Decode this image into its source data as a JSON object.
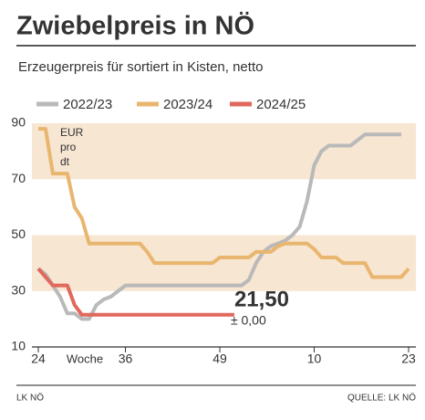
{
  "chart_data": {
    "type": "line",
    "title": "Zwiebelpreis in NÖ",
    "subtitle": "Erzeugerpreis für sortiert in Kisten, netto",
    "y_unit": "EUR pro dt",
    "x_label": "Woche",
    "source_left": "LK NÖ",
    "source_right": "QUELLE: LK NÖ",
    "x": [
      0,
      1,
      2,
      3,
      4,
      5,
      6,
      7,
      8,
      9,
      10,
      11,
      12,
      13,
      14,
      15,
      16,
      17,
      18,
      19,
      20,
      21,
      22,
      23,
      24,
      25,
      26,
      27,
      28,
      29,
      30,
      31,
      32,
      33,
      34,
      35,
      36,
      37,
      38,
      39,
      40,
      41,
      42,
      43,
      44,
      45,
      46,
      47,
      48,
      49,
      50,
      51
    ],
    "xlim": [
      0,
      51
    ],
    "xticks": [
      {
        "value": 0,
        "label": "24"
      },
      {
        "value": 12,
        "label": "36"
      },
      {
        "value": 25,
        "label": "49"
      },
      {
        "value": 38,
        "label": "10"
      },
      {
        "value": 51,
        "label": "23"
      }
    ],
    "ylim": [
      10,
      90
    ],
    "yticks": [
      10,
      30,
      50,
      70,
      90
    ],
    "bands": [
      [
        70,
        90
      ],
      [
        30,
        50
      ]
    ],
    "band_color": "#f7e6d2",
    "series": [
      {
        "name": "2022/23",
        "color": "#b9b9b9",
        "values": [
          38,
          36,
          32,
          28,
          22,
          22,
          20,
          20,
          25,
          27,
          28,
          30,
          32,
          32,
          32,
          32,
          32,
          32,
          32,
          32,
          32,
          32,
          32,
          32,
          32,
          32,
          32,
          32,
          32,
          34,
          40,
          44,
          46,
          47,
          48,
          50,
          53,
          62,
          75,
          80,
          82,
          82,
          82,
          82,
          84,
          86,
          86,
          86,
          86,
          86,
          86,
          null
        ]
      },
      {
        "name": "2023/24",
        "color": "#e9b66f",
        "values": [
          88,
          88,
          72,
          72,
          72,
          60,
          56,
          47,
          47,
          47,
          47,
          47,
          47,
          47,
          47,
          44,
          40,
          40,
          40,
          40,
          40,
          40,
          40,
          40,
          40,
          42,
          42,
          42,
          42,
          42,
          44,
          44,
          44,
          46,
          47,
          47,
          47,
          47,
          45,
          42,
          42,
          42,
          40,
          40,
          40,
          40,
          35,
          35,
          35,
          35,
          35,
          38
        ]
      },
      {
        "name": "2024/25",
        "color": "#e0685c",
        "values": [
          38,
          35,
          32,
          32,
          32,
          25,
          21.5,
          21.5,
          21.5,
          21.5,
          21.5,
          21.5,
          21.5,
          21.5,
          21.5,
          21.5,
          21.5,
          21.5,
          21.5,
          21.5,
          21.5,
          21.5,
          21.5,
          21.5,
          21.5,
          21.5,
          21.5,
          21.5,
          null,
          null,
          null,
          null,
          null,
          null,
          null,
          null,
          null,
          null,
          null,
          null,
          null,
          null,
          null,
          null,
          null,
          null,
          null,
          null,
          null,
          null,
          null,
          null
        ]
      }
    ],
    "annotations": [
      {
        "text": "21,50",
        "index": 27
      },
      {
        "text": "± 0,00",
        "index": 27
      }
    ]
  }
}
